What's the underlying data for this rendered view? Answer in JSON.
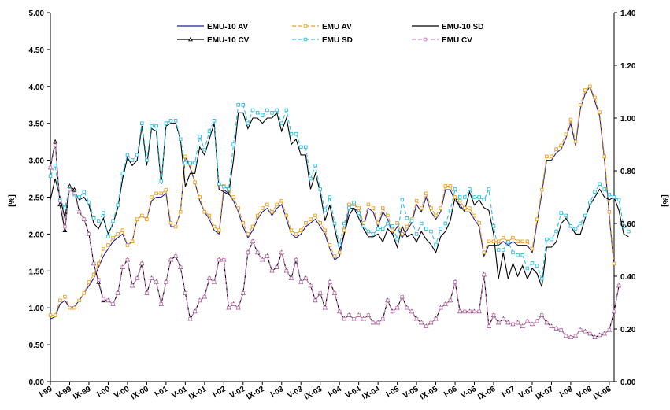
{
  "chart_data": {
    "type": "line",
    "ylabel_left": "[%]",
    "ylabel_right": "[%]",
    "ylim_left": [
      0,
      5
    ],
    "ylim_right": [
      0,
      1.4
    ],
    "yticks_left": [
      "0.00",
      "0.50",
      "1.00",
      "1.50",
      "2.00",
      "2.50",
      "3.00",
      "3.50",
      "4.00",
      "4.50",
      "5.00"
    ],
    "yticks_right": [
      "0.00",
      "0.20",
      "0.40",
      "0.60",
      "0.80",
      "1.00",
      "1.20",
      "1.40"
    ],
    "x_start": "1999-01",
    "x_end": "2008-12",
    "x_ticks": [
      "I-99",
      "V-99",
      "IX-99",
      "I-00",
      "V-00",
      "IX-00",
      "I-01",
      "V-01",
      "IX-01",
      "I-02",
      "V-02",
      "IX-02",
      "I-03",
      "V-03",
      "IX-03",
      "I-04",
      "V-04",
      "IX-04",
      "I-05",
      "V-05",
      "IX-05",
      "I-06",
      "V-06",
      "IX-06",
      "I-07",
      "V-07",
      "IX-07",
      "I-08",
      "V-08",
      "IX-08"
    ],
    "grid": false,
    "legend_position": "top",
    "series": [
      {
        "name": "EMU-10 AV",
        "axis": "left",
        "color": "#1f1f8f",
        "style": "solid",
        "marker": "none",
        "values": [
          0.85,
          0.88,
          1.05,
          1.1,
          1.0,
          1.02,
          1.1,
          1.2,
          1.3,
          1.4,
          1.55,
          1.7,
          1.8,
          1.9,
          1.95,
          2.0,
          1.85,
          1.9,
          2.2,
          2.25,
          2.2,
          2.45,
          2.5,
          2.5,
          2.55,
          2.1,
          2.1,
          2.3,
          3.05,
          2.9,
          2.7,
          2.45,
          2.3,
          2.2,
          2.05,
          2.0,
          2.6,
          2.55,
          2.45,
          2.3,
          2.1,
          1.95,
          2.05,
          2.2,
          2.3,
          2.35,
          2.25,
          2.35,
          2.4,
          2.2,
          2.0,
          1.95,
          2.0,
          2.1,
          2.15,
          2.2,
          2.1,
          2.0,
          1.8,
          1.65,
          1.7,
          2.0,
          2.35,
          2.35,
          2.3,
          2.1,
          2.35,
          2.3,
          2.1,
          2.3,
          2.2,
          2.0,
          2.1,
          1.95,
          2.05,
          2.15,
          2.4,
          2.3,
          2.5,
          2.3,
          2.2,
          2.3,
          2.6,
          2.6,
          2.45,
          2.4,
          2.3,
          2.3,
          2.2,
          2.1,
          1.7,
          1.85,
          1.85,
          1.85,
          1.9,
          1.85,
          1.9,
          1.85,
          1.85,
          1.85,
          1.75,
          2.15,
          2.55,
          3.0,
          3.0,
          3.1,
          3.15,
          3.3,
          3.5,
          3.2,
          3.7,
          3.9,
          4.0,
          3.8,
          3.6,
          3.0,
          2.25,
          1.55
        ]
      },
      {
        "name": "EMU AV",
        "axis": "left",
        "color": "#f0a020",
        "style": "dashed",
        "marker": "square",
        "values": [
          0.9,
          0.9,
          1.1,
          1.15,
          1.0,
          1.0,
          1.1,
          1.2,
          1.35,
          1.45,
          1.6,
          1.8,
          1.85,
          1.95,
          2.0,
          2.05,
          1.85,
          1.9,
          2.2,
          2.25,
          2.2,
          2.5,
          2.55,
          2.55,
          2.6,
          2.15,
          2.1,
          2.3,
          3.05,
          2.95,
          2.7,
          2.5,
          2.3,
          2.25,
          2.1,
          2.05,
          2.65,
          2.6,
          2.5,
          2.35,
          2.15,
          2.0,
          2.1,
          2.25,
          2.35,
          2.4,
          2.3,
          2.4,
          2.45,
          2.25,
          2.05,
          2.0,
          2.05,
          2.15,
          2.2,
          2.25,
          2.15,
          2.05,
          1.85,
          1.7,
          1.75,
          2.05,
          2.4,
          2.4,
          2.35,
          2.15,
          2.4,
          2.35,
          2.15,
          2.35,
          2.25,
          2.05,
          2.15,
          2.0,
          2.1,
          2.2,
          2.45,
          2.35,
          2.55,
          2.35,
          2.25,
          2.35,
          2.65,
          2.65,
          2.5,
          2.45,
          2.35,
          2.35,
          2.25,
          2.15,
          1.75,
          1.9,
          1.9,
          1.9,
          1.95,
          1.9,
          1.95,
          1.9,
          1.9,
          1.9,
          1.8,
          2.2,
          2.6,
          3.05,
          3.05,
          3.15,
          3.2,
          3.35,
          3.55,
          3.25,
          3.75,
          3.95,
          4.0,
          3.85,
          3.65,
          3.05,
          2.3,
          1.6
        ]
      },
      {
        "name": "EMU-10 SD",
        "axis": "right",
        "color": "#000000",
        "style": "solid",
        "marker": "none",
        "values": [
          0.69,
          0.77,
          0.7,
          0.62,
          0.74,
          0.72,
          0.69,
          0.7,
          0.67,
          0.6,
          0.58,
          0.62,
          0.56,
          0.6,
          0.66,
          0.77,
          0.85,
          0.82,
          0.84,
          0.97,
          0.82,
          0.96,
          0.95,
          0.75,
          0.97,
          0.98,
          0.98,
          0.92,
          0.74,
          0.79,
          0.79,
          0.89,
          0.86,
          0.92,
          0.98,
          0.73,
          0.72,
          0.71,
          0.84,
          1.02,
          1.02,
          0.96,
          1.0,
          1.0,
          0.98,
          1.0,
          1.0,
          1.02,
          0.95,
          1.0,
          0.9,
          0.92,
          0.86,
          0.86,
          0.73,
          0.79,
          0.72,
          0.61,
          0.67,
          0.58,
          0.5,
          0.56,
          0.63,
          0.66,
          0.62,
          0.58,
          0.55,
          0.55,
          0.56,
          0.53,
          0.58,
          0.56,
          0.51,
          0.59,
          0.55,
          0.56,
          0.53,
          0.57,
          0.54,
          0.52,
          0.49,
          0.55,
          0.57,
          0.61,
          0.7,
          0.66,
          0.65,
          0.72,
          0.67,
          0.69,
          0.66,
          0.65,
          0.56,
          0.39,
          0.49,
          0.39,
          0.45,
          0.4,
          0.44,
          0.39,
          0.43,
          0.41,
          0.36,
          0.51,
          0.51,
          0.53,
          0.6,
          0.62,
          0.59,
          0.56,
          0.56,
          0.62,
          0.67,
          0.7,
          0.73,
          0.7,
          0.69,
          0.7,
          0.65,
          0.56,
          0.55
        ]
      },
      {
        "name": "EMU-10 CV",
        "axis": "left",
        "color": "#000000",
        "style": "solid",
        "marker": "triangle",
        "values": [
          2.9,
          3.25,
          2.4,
          2.05,
          2.65,
          2.6,
          2.3,
          2.2,
          2.0,
          1.6,
          1.35,
          1.1,
          1.1,
          1.05,
          1.2,
          1.55,
          1.65,
          1.3,
          1.4,
          1.6,
          1.2,
          1.4,
          1.35,
          1.05,
          1.35,
          1.65,
          1.7,
          1.55,
          1.2,
          0.85,
          0.95,
          1.1,
          1.15,
          1.4,
          1.35,
          1.65,
          1.65,
          1.0,
          1.05,
          1.0,
          1.2,
          1.75,
          1.9,
          1.75,
          1.65,
          1.7,
          1.5,
          1.55,
          1.75,
          1.5,
          1.4,
          1.65,
          1.35,
          1.4,
          1.3,
          1.1,
          1.2,
          1.0,
          1.35,
          1.2,
          0.95,
          0.85,
          0.9,
          0.85,
          0.9,
          0.85,
          0.9,
          0.8,
          0.8,
          0.85,
          1.1,
          0.95,
          1.0,
          1.15,
          1.0,
          0.95,
          0.85,
          0.8,
          0.75,
          0.8,
          0.85,
          1.0,
          1.05,
          1.1,
          1.35,
          0.95,
          0.95,
          0.95,
          0.95,
          0.95,
          1.45,
          0.75,
          0.9,
          0.8,
          0.85,
          0.8,
          0.78,
          0.8,
          0.75,
          0.82,
          0.78,
          0.82,
          0.9,
          0.8,
          0.75,
          0.72,
          0.7,
          0.62,
          0.6,
          0.62,
          0.7,
          0.68,
          0.65,
          0.6,
          0.63,
          0.65,
          0.7,
          0.95,
          1.3
        ]
      },
      {
        "name": "EMU SD",
        "axis": "right",
        "color": "#30c0e0",
        "style": "dashed",
        "marker": "square",
        "values": [
          0.78,
          0.82,
          0.69,
          0.66,
          0.73,
          0.71,
          0.7,
          0.72,
          0.68,
          0.62,
          0.61,
          0.64,
          0.55,
          0.61,
          0.67,
          0.79,
          0.86,
          0.84,
          0.86,
          0.98,
          0.84,
          0.97,
          0.97,
          0.76,
          0.98,
          0.99,
          0.99,
          0.92,
          0.83,
          0.83,
          0.83,
          0.93,
          0.88,
          0.95,
          0.99,
          0.75,
          0.74,
          0.73,
          0.9,
          1.05,
          1.05,
          0.98,
          1.03,
          1.02,
          1.01,
          1.03,
          1.02,
          1.03,
          0.98,
          1.03,
          0.94,
          0.94,
          0.89,
          0.89,
          0.77,
          0.82,
          0.73,
          0.65,
          0.7,
          0.6,
          0.52,
          0.6,
          0.66,
          0.68,
          0.64,
          0.59,
          0.57,
          0.56,
          0.58,
          0.58,
          0.6,
          0.59,
          0.54,
          0.69,
          0.62,
          0.61,
          0.56,
          0.6,
          0.58,
          0.57,
          0.52,
          0.58,
          0.6,
          0.65,
          0.73,
          0.7,
          0.7,
          0.73,
          0.7,
          0.7,
          0.69,
          0.73,
          0.59,
          0.5,
          0.5,
          0.53,
          0.49,
          0.48,
          0.48,
          0.43,
          0.45,
          0.44,
          0.39,
          0.54,
          0.54,
          0.57,
          0.64,
          0.63,
          0.59,
          0.58,
          0.6,
          0.63,
          0.68,
          0.72,
          0.75,
          0.73,
          0.71,
          0.7,
          0.69,
          0.59,
          0.57
        ]
      },
      {
        "name": "EMU CV",
        "axis": "left",
        "color": "#d080c0",
        "style": "dashed",
        "marker": "square",
        "values": [
          2.9,
          3.2,
          2.45,
          2.1,
          2.6,
          2.55,
          2.3,
          2.2,
          2.0,
          1.6,
          1.38,
          1.12,
          1.1,
          1.05,
          1.2,
          1.55,
          1.65,
          1.3,
          1.4,
          1.6,
          1.2,
          1.4,
          1.35,
          1.05,
          1.35,
          1.65,
          1.7,
          1.55,
          1.2,
          0.85,
          0.95,
          1.1,
          1.15,
          1.4,
          1.35,
          1.65,
          1.65,
          1.0,
          1.05,
          1.0,
          1.2,
          1.75,
          1.9,
          1.75,
          1.65,
          1.7,
          1.5,
          1.55,
          1.75,
          1.5,
          1.4,
          1.65,
          1.35,
          1.4,
          1.3,
          1.1,
          1.2,
          1.0,
          1.35,
          1.2,
          0.95,
          0.85,
          0.9,
          0.85,
          0.9,
          0.85,
          0.9,
          0.8,
          0.8,
          0.85,
          1.1,
          0.95,
          1.0,
          1.15,
          1.0,
          0.95,
          0.85,
          0.8,
          0.75,
          0.8,
          0.85,
          1.0,
          1.05,
          1.1,
          1.35,
          0.95,
          0.95,
          0.95,
          0.95,
          0.95,
          1.45,
          0.75,
          0.9,
          0.8,
          0.85,
          0.8,
          0.78,
          0.8,
          0.75,
          0.82,
          0.78,
          0.82,
          0.9,
          0.8,
          0.75,
          0.72,
          0.7,
          0.62,
          0.6,
          0.62,
          0.7,
          0.68,
          0.65,
          0.6,
          0.63,
          0.65,
          0.7,
          0.95,
          1.3
        ]
      }
    ]
  }
}
